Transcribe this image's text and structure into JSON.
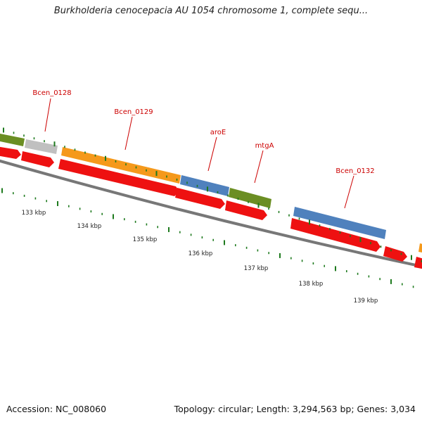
{
  "title": "Burkholderia cenocepacia AU 1054 chromosome 1, complete sequ...",
  "footer": {
    "accession": "Accession: NC_008060",
    "summary": "Topology: circular; Length: 3,294,563 bp; Genes: 3,034"
  },
  "colors": {
    "label": "#cc0000",
    "tick": "#1e7a1e",
    "backbone": "#777777",
    "cds": "#ee1111",
    "gene_green": "#6b8e23",
    "gene_gray": "#c0c0c0",
    "gene_orange": "#f5991b",
    "gene_blue": "#4f81bd"
  },
  "scale_labels": [
    "133 kbp",
    "134 kbp",
    "135 kbp",
    "136 kbp",
    "137 kbp",
    "138 kbp",
    "139 kbp"
  ],
  "gene_labels": [
    {
      "text": "Bcen_0128"
    },
    {
      "text": "Bcen_0129"
    },
    {
      "text": "aroE"
    },
    {
      "text": "mtgA"
    },
    {
      "text": "Bcen_0132"
    }
  ]
}
